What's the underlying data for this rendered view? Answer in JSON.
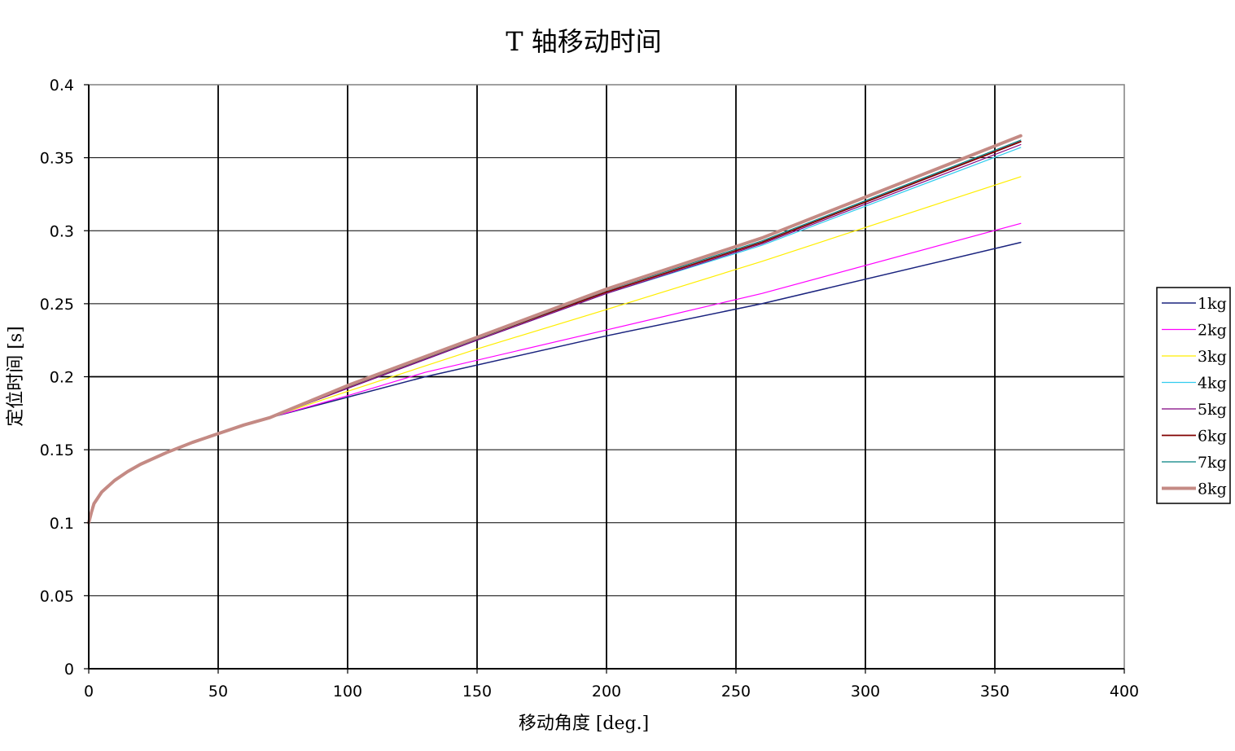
{
  "chart_data": {
    "type": "line",
    "title": "T 轴移动时间",
    "xlabel": "移动角度 [deg.]",
    "ylabel": "定位时间 [s]",
    "xlim": [
      0,
      400
    ],
    "ylim": [
      0,
      0.4
    ],
    "x_ticks": [
      0,
      50,
      100,
      150,
      200,
      250,
      300,
      350,
      400
    ],
    "y_ticks": [
      0,
      0.05,
      0.1,
      0.15,
      0.2,
      0.25,
      0.3,
      0.35,
      0.4
    ],
    "x_tick_labels": [
      "0",
      "50",
      "100",
      "150",
      "200",
      "250",
      "300",
      "350",
      "400"
    ],
    "y_tick_labels": [
      "0",
      "0.05",
      "0.1",
      "0.15",
      "0.2",
      "0.25",
      "0.3",
      "0.35",
      "0.4"
    ],
    "grid": true,
    "legend_position": "right",
    "shared_curve": {
      "x": [
        0,
        1,
        2,
        5,
        10,
        15,
        20,
        30,
        40,
        50,
        60,
        70
      ],
      "y": [
        0.1,
        0.107,
        0.113,
        0.121,
        0.129,
        0.135,
        0.14,
        0.148,
        0.155,
        0.161,
        0.167,
        0.172
      ]
    },
    "series": [
      {
        "name": "1kg",
        "color": "#1a237e",
        "width": 1.5,
        "x": [
          70,
          100,
          130,
          200,
          260,
          360
        ],
        "y": [
          0.172,
          0.186,
          0.2,
          0.228,
          0.25,
          0.292
        ]
      },
      {
        "name": "2kg",
        "color": "#ff00ff",
        "width": 1.2,
        "x": [
          70,
          100,
          130,
          200,
          260,
          360
        ],
        "y": [
          0.172,
          0.187,
          0.203,
          0.232,
          0.257,
          0.305
        ]
      },
      {
        "name": "3kg",
        "color": "#ffee00",
        "width": 1.2,
        "x": [
          70,
          100,
          150,
          200,
          260,
          360
        ],
        "y": [
          0.172,
          0.19,
          0.219,
          0.246,
          0.279,
          0.337
        ]
      },
      {
        "name": "4kg",
        "color": "#33ccee",
        "width": 1.2,
        "x": [
          70,
          100,
          150,
          200,
          260,
          360
        ],
        "y": [
          0.172,
          0.192,
          0.225,
          0.257,
          0.29,
          0.357
        ]
      },
      {
        "name": "5kg",
        "color": "#800080",
        "width": 1.2,
        "x": [
          70,
          100,
          150,
          200,
          260,
          360
        ],
        "y": [
          0.172,
          0.192,
          0.225,
          0.257,
          0.291,
          0.359
        ]
      },
      {
        "name": "6kg",
        "color": "#800000",
        "width": 1.8,
        "x": [
          70,
          100,
          150,
          200,
          260,
          360
        ],
        "y": [
          0.172,
          0.193,
          0.226,
          0.258,
          0.292,
          0.361
        ]
      },
      {
        "name": "7kg",
        "color": "#008080",
        "width": 1.2,
        "x": [
          70,
          100,
          150,
          200,
          260,
          360
        ],
        "y": [
          0.172,
          0.193,
          0.226,
          0.259,
          0.293,
          0.362
        ]
      },
      {
        "name": "8kg",
        "color": "#c48a84",
        "width": 4,
        "x": [
          70,
          100,
          150,
          200,
          260,
          360
        ],
        "y": [
          0.172,
          0.194,
          0.227,
          0.26,
          0.295,
          0.365
        ]
      }
    ]
  }
}
